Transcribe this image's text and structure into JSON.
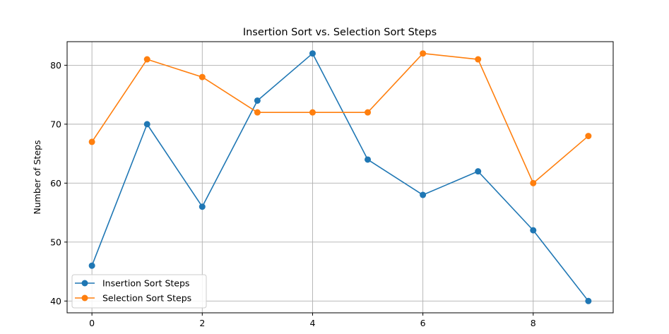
{
  "chart_data": {
    "type": "line",
    "title": "Insertion Sort vs. Selection Sort Steps",
    "xlabel": "",
    "ylabel": "Number of Steps",
    "x": [
      0,
      1,
      2,
      3,
      4,
      5,
      6,
      7,
      8,
      9
    ],
    "series": [
      {
        "name": "Insertion Sort Steps",
        "color": "#1f77b4",
        "values": [
          46,
          70,
          56,
          74,
          82,
          64,
          58,
          62,
          52,
          40
        ]
      },
      {
        "name": "Selection Sort Steps",
        "color": "#ff7f0e",
        "values": [
          67,
          81,
          78,
          72,
          72,
          72,
          82,
          81,
          60,
          68
        ]
      }
    ],
    "xlim": [
      -0.45,
      9.45
    ],
    "ylim": [
      38,
      84
    ],
    "xticks": [
      0,
      2,
      4,
      6,
      8
    ],
    "yticks": [
      40,
      50,
      60,
      70,
      80
    ],
    "grid": true,
    "legend_position": "lower-left"
  }
}
